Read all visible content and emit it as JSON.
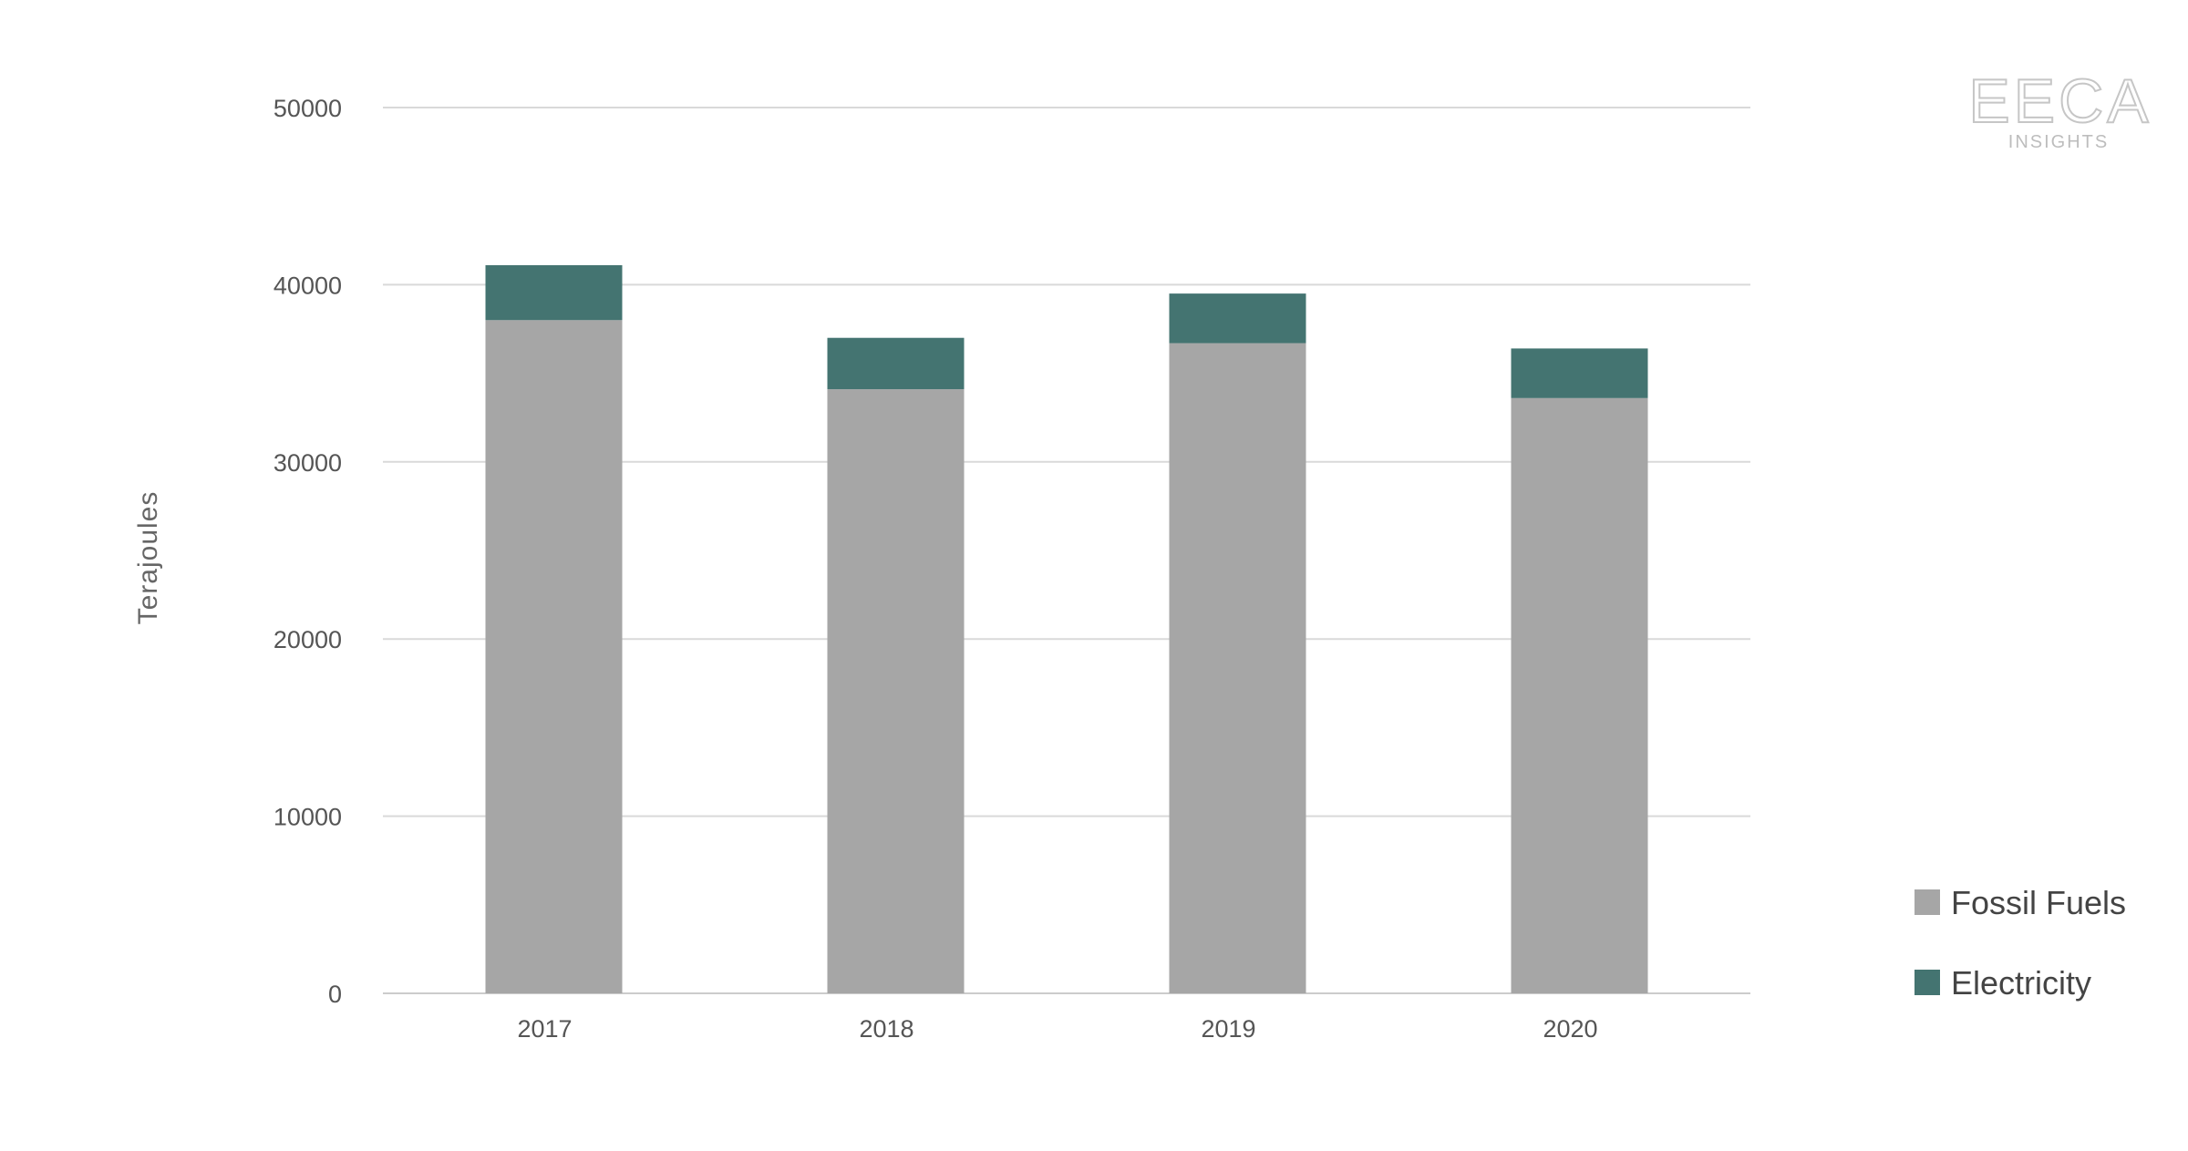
{
  "chart_data": {
    "type": "bar",
    "stacked": true,
    "categories": [
      "2017",
      "2018",
      "2019",
      "2020"
    ],
    "series": [
      {
        "name": "Fossil Fuels",
        "color": "#a6a6a6",
        "values": [
          38000,
          34100,
          36700,
          33600
        ]
      },
      {
        "name": "Electricity",
        "color": "#447471",
        "values": [
          3100,
          2900,
          2800,
          2800
        ]
      }
    ],
    "ylabel": "Terajoules",
    "xlabel": "",
    "title": "",
    "ylim": [
      0,
      50000
    ],
    "yticks": [
      0,
      10000,
      20000,
      30000,
      40000,
      50000
    ],
    "grid": true,
    "legend_position": "bottom-right"
  },
  "branding": {
    "logo_text": "EECA",
    "logo_subtext": "INSIGHTS"
  },
  "colors": {
    "gridline": "#d9d9d9",
    "axis_line": "#cccccc"
  }
}
